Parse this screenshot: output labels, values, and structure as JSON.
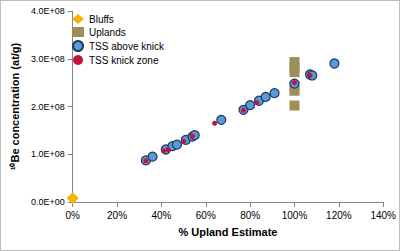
{
  "chart_data": {
    "type": "scatter",
    "x_label": "% Upland Estimate",
    "y_label": "¹⁰Be concentration (at/g)",
    "xlim": [
      0,
      140
    ],
    "xticks": [
      {
        "value": 0,
        "label": "0%"
      },
      {
        "value": 20,
        "label": "20%"
      },
      {
        "value": 40,
        "label": "40%"
      },
      {
        "value": 60,
        "label": "60%"
      },
      {
        "value": 80,
        "label": "80%"
      },
      {
        "value": 100,
        "label": "100%"
      },
      {
        "value": 120,
        "label": "120%"
      },
      {
        "value": 140,
        "label": "140%"
      }
    ],
    "ylim": [
      0,
      400000000
    ],
    "yticks": [
      {
        "value": 0,
        "label": "0.0E+00"
      },
      {
        "value": 100000000,
        "label": "1.0E+08"
      },
      {
        "value": 200000000,
        "label": "2.0E+08"
      },
      {
        "value": 300000000,
        "label": "3.0E+08"
      },
      {
        "value": 400000000,
        "label": "4.0E+08"
      }
    ],
    "grid": false,
    "legend": "upper left",
    "series": [
      {
        "name": "Bluffs",
        "color": "#f5b400",
        "marker": "diamond",
        "x": [
          0
        ],
        "values": [
          8000000
        ]
      },
      {
        "name": "Uplands",
        "color": "#9c8f5a",
        "marker": "square",
        "x": [
          100,
          100,
          100,
          100,
          100,
          100
        ],
        "values": [
          202000000,
          233000000,
          242000000,
          272000000,
          282000000,
          293000000
        ]
      },
      {
        "name": "TSS above knick",
        "color": "#5b9bd5",
        "marker": "circle",
        "x": [
          33,
          36,
          42,
          45,
          47,
          51,
          54,
          55,
          67,
          77,
          80,
          84,
          87,
          91,
          100,
          107,
          108,
          118
        ],
        "values": [
          87000000,
          95000000,
          110000000,
          117000000,
          120000000,
          130000000,
          137000000,
          140000000,
          172000000,
          193000000,
          203000000,
          212000000,
          220000000,
          228000000,
          248000000,
          267000000,
          265000000,
          290000000
        ]
      },
      {
        "name": "TSS knick zone",
        "color": "#c0143c",
        "marker": "point",
        "x": [
          33,
          41,
          43,
          50,
          54,
          64,
          77,
          83,
          100,
          107
        ],
        "values": [
          86000000,
          107000000,
          110000000,
          127000000,
          138000000,
          165000000,
          192000000,
          208000000,
          250000000,
          265000000
        ]
      }
    ]
  }
}
